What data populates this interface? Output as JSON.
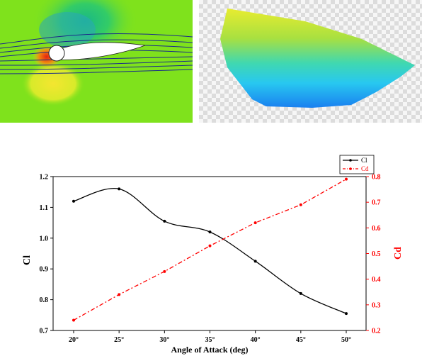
{
  "chart_data": {
    "type": "line",
    "categories": [
      "20°",
      "25°",
      "30°",
      "35°",
      "40°",
      "45°",
      "50°"
    ],
    "xlabel": "Angle of Attack (deg)",
    "series": [
      {
        "name": "Cl",
        "axis": "left",
        "color": "#000000",
        "line_style": "solid",
        "values": [
          1.12,
          1.16,
          1.055,
          1.02,
          0.925,
          0.82,
          0.755
        ]
      },
      {
        "name": "Cd",
        "axis": "right",
        "color": "#ff0000",
        "line_style": "dash-dot",
        "values": [
          0.24,
          0.34,
          0.43,
          0.53,
          0.62,
          0.69,
          0.79
        ]
      }
    ],
    "left_axis": {
      "label": "Cl",
      "ylim": [
        0.7,
        1.2
      ],
      "ticks": [
        "0.7",
        "0.8",
        "0.9",
        "1.0",
        "1.1",
        "1.2"
      ],
      "color": "#000000"
    },
    "right_axis": {
      "label": "Cd",
      "ylim": [
        0.2,
        0.8
      ],
      "ticks": [
        "0.2",
        "0.3",
        "0.4",
        "0.5",
        "0.6",
        "0.7",
        "0.8"
      ],
      "color": "#ff0000"
    },
    "legend": {
      "placement": "top-right",
      "entries": [
        "Cl",
        "Cd"
      ]
    }
  },
  "images": {
    "cfd": "airfoil-streamline-pressure-contour",
    "shape": "colored-surface-model-on-transparent-background"
  }
}
